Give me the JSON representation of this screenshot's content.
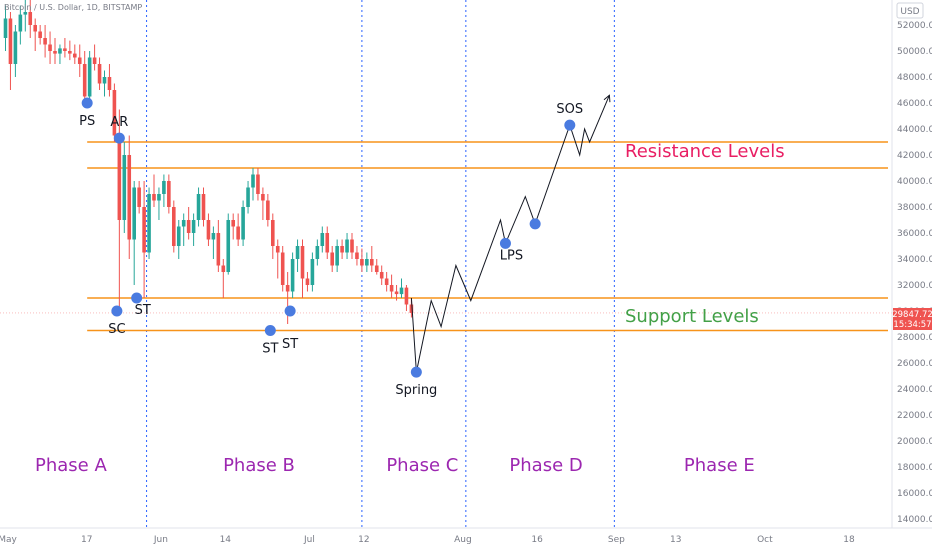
{
  "symbol_title": "Bitcoin / U.S. Dollar, 1D, BITSTAMP",
  "currency": "USD",
  "price_badge": {
    "price": "29847.72",
    "countdown": "15:34:57",
    "color": "#ef5350"
  },
  "colors": {
    "up": "#26a69a",
    "down": "#ef5350",
    "level": "#f7931a",
    "phase_divider": "#2962ff",
    "marker": "#4a7be0",
    "phase_text": "#9c27b0",
    "resistance_text": "#e91e63",
    "support_text": "#43a047",
    "path": "#131722"
  },
  "chart_data": {
    "type": "candlestick",
    "title": "Bitcoin / U.S. Dollar, 1D, BITSTAMP",
    "y_ticks": [
      14000,
      16000,
      18000,
      20000,
      22000,
      24000,
      26000,
      28000,
      30000,
      32000,
      34000,
      36000,
      38000,
      40000,
      42000,
      44000,
      46000,
      48000,
      50000,
      52000
    ],
    "y_tick_labels": [
      "14000.00",
      "16000.00",
      "18000.00",
      "20000.00",
      "22000.00",
      "24000.00",
      "26000.00",
      "28000.00",
      "30000.00",
      "32000.00",
      "34000.00",
      "36000.00",
      "38000.00",
      "40000.00",
      "42000.00",
      "44000.00",
      "46000.00",
      "48000.00",
      "50000.00",
      "52000.00"
    ],
    "x_ticks": [
      {
        "label": "May",
        "x": 0
      },
      {
        "label": "17",
        "x": 16
      },
      {
        "label": "Jun",
        "x": 31
      },
      {
        "label": "14",
        "x": 44
      },
      {
        "label": "Jul",
        "x": 61
      },
      {
        "label": "12",
        "x": 72
      },
      {
        "label": "Aug",
        "x": 92
      },
      {
        "label": "16",
        "x": 107
      },
      {
        "label": "Sep",
        "x": 123
      },
      {
        "label": "13",
        "x": 135
      },
      {
        "label": "Oct",
        "x": 153
      },
      {
        "label": "18",
        "x": 170
      }
    ],
    "candles": [
      [
        0,
        51000,
        53500,
        50000,
        52500
      ],
      [
        1,
        52500,
        53000,
        47000,
        49000
      ],
      [
        2,
        49000,
        52000,
        48000,
        51500
      ],
      [
        3,
        51500,
        53500,
        50500,
        52800
      ],
      [
        4,
        52800,
        54000,
        51500,
        53000
      ],
      [
        5,
        53000,
        54000,
        51000,
        52000
      ],
      [
        6,
        52000,
        52500,
        50000,
        51500
      ],
      [
        7,
        51500,
        52000,
        50500,
        51000
      ],
      [
        8,
        51000,
        52000,
        49500,
        50500
      ],
      [
        9,
        50500,
        51500,
        49000,
        50000
      ],
      [
        10,
        50000,
        51000,
        49000,
        49800
      ],
      [
        11,
        49800,
        50500,
        49000,
        50200
      ],
      [
        12,
        50200,
        51000,
        49500,
        50000
      ],
      [
        13,
        50000,
        50800,
        49300,
        49800
      ],
      [
        14,
        49800,
        50500,
        49000,
        49500
      ],
      [
        15,
        49500,
        50500,
        48000,
        49000
      ],
      [
        16,
        49000,
        50000,
        46000,
        46500
      ],
      [
        17,
        46500,
        50000,
        46000,
        49500
      ],
      [
        18,
        49500,
        50500,
        48500,
        49000
      ],
      [
        19,
        49000,
        49500,
        47000,
        47500
      ],
      [
        20,
        47500,
        48500,
        46500,
        48000
      ],
      [
        21,
        48000,
        49000,
        46500,
        47000
      ],
      [
        22,
        47000,
        47500,
        43000,
        43500
      ],
      [
        23,
        43500,
        45500,
        30000,
        37000
      ],
      [
        24,
        37000,
        43000,
        36000,
        42000
      ],
      [
        25,
        42000,
        43500,
        34000,
        35500
      ],
      [
        26,
        35500,
        40000,
        32000,
        39500
      ],
      [
        27,
        39500,
        40000,
        37500,
        38000
      ],
      [
        28,
        38000,
        40000,
        31000,
        34500
      ],
      [
        29,
        34500,
        39500,
        34000,
        39000
      ],
      [
        30,
        39000,
        40500,
        38000,
        38500
      ],
      [
        31,
        38500,
        39500,
        37000,
        39000
      ],
      [
        32,
        39000,
        40500,
        38000,
        40000
      ],
      [
        33,
        40000,
        40500,
        37500,
        38000
      ],
      [
        34,
        38000,
        38500,
        34500,
        35000
      ],
      [
        35,
        35000,
        37000,
        34000,
        36500
      ],
      [
        36,
        36500,
        37500,
        35000,
        37000
      ],
      [
        37,
        37000,
        38000,
        35500,
        36000
      ],
      [
        38,
        36000,
        37500,
        35000,
        37000
      ],
      [
        39,
        37000,
        39500,
        36500,
        39000
      ],
      [
        40,
        39000,
        39500,
        36500,
        37000
      ],
      [
        41,
        37000,
        37500,
        35000,
        35500
      ],
      [
        42,
        35500,
        36500,
        34000,
        36000
      ],
      [
        43,
        36000,
        37000,
        33000,
        33500
      ],
      [
        44,
        33500,
        34000,
        31000,
        33000
      ],
      [
        45,
        33000,
        37500,
        32800,
        37000
      ],
      [
        46,
        37000,
        37500,
        35500,
        36500
      ],
      [
        47,
        36500,
        37500,
        35000,
        35500
      ],
      [
        48,
        35500,
        38500,
        35000,
        38000
      ],
      [
        49,
        38000,
        40000,
        37500,
        39500
      ],
      [
        50,
        39500,
        41000,
        38500,
        40500
      ],
      [
        51,
        40500,
        41000,
        38500,
        39000
      ],
      [
        52,
        39000,
        39500,
        37000,
        38500
      ],
      [
        53,
        38500,
        39000,
        36500,
        37000
      ],
      [
        54,
        37000,
        37500,
        34000,
        35000
      ],
      [
        55,
        35000,
        35500,
        32500,
        34500
      ],
      [
        56,
        34500,
        35000,
        31500,
        32000
      ],
      [
        57,
        32000,
        33000,
        29000,
        31500
      ],
      [
        58,
        31500,
        34500,
        31000,
        34000
      ],
      [
        59,
        34000,
        35500,
        33000,
        35000
      ],
      [
        60,
        35000,
        35500,
        31000,
        32500
      ],
      [
        61,
        32500,
        33000,
        31500,
        32000
      ],
      [
        62,
        32000,
        34500,
        31500,
        34000
      ],
      [
        63,
        34000,
        35500,
        33500,
        35000
      ],
      [
        64,
        35000,
        36500,
        34500,
        36000
      ],
      [
        65,
        36000,
        36500,
        34000,
        34500
      ],
      [
        66,
        34500,
        35000,
        33000,
        33500
      ],
      [
        67,
        33500,
        35500,
        33000,
        35000
      ],
      [
        68,
        35000,
        35500,
        34000,
        34500
      ],
      [
        69,
        34500,
        36000,
        34000,
        35500
      ],
      [
        70,
        35500,
        36000,
        34000,
        34500
      ],
      [
        71,
        34500,
        35000,
        33500,
        34000
      ],
      [
        72,
        34000,
        34800,
        33000,
        33500
      ],
      [
        73,
        33500,
        34500,
        33000,
        34000
      ],
      [
        74,
        34000,
        35000,
        33000,
        33500
      ],
      [
        75,
        33500,
        34000,
        32800,
        33000
      ],
      [
        76,
        33000,
        33500,
        32000,
        32500
      ],
      [
        77,
        32500,
        33000,
        31500,
        32000
      ],
      [
        78,
        32000,
        32800,
        31000,
        31500
      ],
      [
        79,
        31500,
        32000,
        30800,
        31300
      ],
      [
        80,
        31300,
        32500,
        31000,
        31800
      ],
      [
        81,
        31800,
        32000,
        30000,
        30500
      ],
      [
        82,
        30500,
        31000,
        29500,
        29850
      ]
    ],
    "levels": [
      {
        "name": "resistance-upper",
        "price": 43000
      },
      {
        "name": "resistance-lower",
        "price": 41000
      },
      {
        "name": "support-upper",
        "price": 31000
      },
      {
        "name": "support-lower",
        "price": 28500
      }
    ],
    "level_labels": [
      {
        "text": "Resistance Levels",
        "kind": "resistance"
      },
      {
        "text": "Support Levels",
        "kind": "support"
      }
    ],
    "phase_dividers_x": [
      28.5,
      72,
      93,
      123
    ],
    "phases": [
      {
        "label": "Phase A",
        "x_center": 12
      },
      {
        "label": "Phase B",
        "x_center": 50
      },
      {
        "label": "Phase C",
        "x_center": 83
      },
      {
        "label": "Phase D",
        "x_center": 108
      },
      {
        "label": "Phase E",
        "x_center": 143
      }
    ],
    "markers": [
      {
        "label": "PS",
        "x": 16.5,
        "price": 46000,
        "label_pos": "below"
      },
      {
        "label": "AR",
        "x": 23,
        "price": 43300,
        "label_pos": "above"
      },
      {
        "label": "SC",
        "x": 22.5,
        "price": 30000,
        "label_pos": "below"
      },
      {
        "label": "ST",
        "x": 26.5,
        "price": 31000,
        "label_pos": "below-right"
      },
      {
        "label": "ST",
        "x": 53.5,
        "price": 28500,
        "label_pos": "below"
      },
      {
        "label": "ST",
        "x": 57.5,
        "price": 30000,
        "label_pos": "below-far"
      },
      {
        "label": "Spring",
        "x": 83,
        "price": 25300,
        "label_pos": "below"
      },
      {
        "label": "LPS",
        "x": 101,
        "price": 35200,
        "label_pos": "below-right"
      },
      {
        "label": "LPS",
        "x": 107,
        "price": 36700,
        "label_pos": "none"
      },
      {
        "label": "SOS",
        "x": 114,
        "price": 44300,
        "label_pos": "above"
      }
    ],
    "projection_path": [
      [
        82,
        31000
      ],
      [
        83,
        25300
      ],
      [
        86,
        30800
      ],
      [
        88,
        28800
      ],
      [
        91,
        33500
      ],
      [
        94,
        30800
      ],
      [
        100,
        37000
      ],
      [
        101,
        35200
      ],
      [
        105,
        38800
      ],
      [
        107,
        36700
      ],
      [
        114,
        44300
      ],
      [
        116,
        42000
      ],
      [
        117,
        44000
      ],
      [
        118,
        43000
      ],
      [
        122,
        46600
      ]
    ],
    "ylim": [
      13500,
      54500
    ],
    "xlim": [
      0,
      181
    ]
  }
}
